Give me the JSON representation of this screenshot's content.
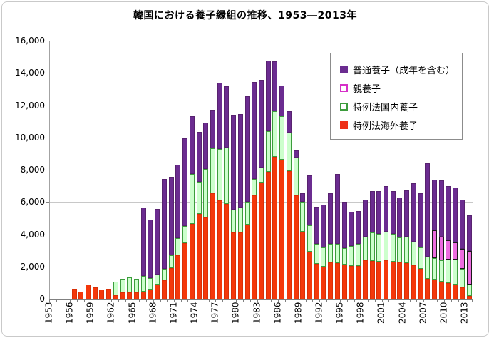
{
  "chart": {
    "title": "韓国における養子縁組の推移、1953―2013年",
    "colors": {
      "purple_fill": "#6b2c90",
      "purple_border": "#58226f",
      "pink_fill": "#ec6cdf",
      "pink_border": "#1a1a1a",
      "pink_swatch_border": "#d630c8",
      "green_fill": "#ccffcc",
      "green_border": "#3c9c3c",
      "red_fill": "#f4380b",
      "red_border": "#d93007",
      "grid": "#c8c8c8",
      "plot_frame": "#a3a3a3",
      "axis": "#808080"
    },
    "y_axis": {
      "min": 0,
      "max": 16000,
      "step": 2000,
      "tick_labels": [
        "0",
        "2,000",
        "4,000",
        "6,000",
        "8,000",
        "10,000",
        "12,000",
        "14,000",
        "16,000"
      ]
    },
    "x_axis": {
      "tick_labels": [
        "1953",
        "1956",
        "1959",
        "1962",
        "1965",
        "1968",
        "1971",
        "1974",
        "1977",
        "1980",
        "1983",
        "1986",
        "1989",
        "1992",
        "1995",
        "1998",
        "2001",
        "2004",
        "2007",
        "2010",
        "2013"
      ],
      "label_every": 3
    },
    "legend": [
      {
        "label": "普通養子（成年を含む）",
        "swatch": "solid",
        "color": "#6b2c90"
      },
      {
        "label": "親養子",
        "swatch": "outline",
        "color": "#d630c8"
      },
      {
        "label": "特例法国内養子",
        "swatch": "outline",
        "color": "#3c9c3c"
      },
      {
        "label": "特例法海外養子",
        "swatch": "solid",
        "color": "#ee3118"
      }
    ]
  },
  "chart_data": {
    "type": "bar",
    "stacked": true,
    "title": "韓国における養子縁組の推移、1953―2013年",
    "ylim": [
      0,
      16000
    ],
    "grid": true,
    "legend_position": "top-right",
    "categories": [
      1953,
      1954,
      1955,
      1956,
      1957,
      1958,
      1959,
      1960,
      1961,
      1962,
      1963,
      1964,
      1965,
      1966,
      1967,
      1968,
      1969,
      1970,
      1971,
      1972,
      1973,
      1974,
      1975,
      1976,
      1977,
      1978,
      1979,
      1980,
      1981,
      1982,
      1983,
      1984,
      1985,
      1986,
      1987,
      1988,
      1989,
      1990,
      1991,
      1992,
      1993,
      1994,
      1995,
      1996,
      1997,
      1998,
      1999,
      2000,
      2001,
      2002,
      2003,
      2004,
      2005,
      2006,
      2007,
      2008,
      2009,
      2010,
      2011,
      2012,
      2013
    ],
    "series": [
      {
        "name": "特例法海外養子",
        "color": "#f4380b",
        "values": [
          4,
          8,
          59,
          671,
          486,
          930,
          741,
          638,
          660,
          254,
          442,
          462,
          451,
          494,
          626,
          949,
          1190,
          1932,
          2725,
          3490,
          4688,
          5302,
          5077,
          6597,
          6159,
          5917,
          4148,
          4144,
          4628,
          6434,
          7263,
          7924,
          8837,
          8680,
          7947,
          6463,
          4191,
          2962,
          2197,
          2045,
          2290,
          2262,
          2180,
          2080,
          2057,
          2443,
          2409,
          2360,
          2436,
          2365,
          2287,
          2258,
          2101,
          1899,
          1264,
          1250,
          1125,
          1013,
          916,
          755,
          236
        ]
      },
      {
        "name": "特例法国内養子",
        "color": "#ccffcc",
        "values": [
          0,
          0,
          0,
          0,
          0,
          0,
          0,
          0,
          0,
          850,
          860,
          900,
          850,
          985,
          705,
          605,
          730,
          800,
          1090,
          1050,
          3100,
          2000,
          3034,
          2760,
          3160,
          3500,
          1400,
          1550,
          1430,
          1030,
          900,
          2500,
          2854,
          2680,
          2382,
          2324,
          1872,
          1647,
          1241,
          1190,
          1154,
          1207,
          1025,
          1229,
          1412,
          1426,
          1726,
          1686,
          1770,
          1694,
          1564,
          1641,
          1461,
          1332,
          1388,
          1306,
          1314,
          1462,
          1548,
          1125,
          686
        ]
      },
      {
        "name": "親養子",
        "color": "#ec6cdf",
        "values": [
          0,
          0,
          0,
          0,
          0,
          0,
          0,
          0,
          0,
          0,
          0,
          0,
          0,
          0,
          0,
          0,
          0,
          0,
          0,
          0,
          0,
          0,
          0,
          0,
          0,
          0,
          0,
          0,
          0,
          0,
          0,
          0,
          0,
          0,
          0,
          0,
          0,
          0,
          0,
          0,
          0,
          0,
          0,
          0,
          0,
          0,
          0,
          0,
          0,
          0,
          0,
          0,
          0,
          0,
          0,
          1740,
          1460,
          1200,
          1090,
          1280,
          2090
        ]
      },
      {
        "name": "普通養子（成年を含む）",
        "color": "#6b2c90",
        "values": [
          0,
          0,
          0,
          0,
          0,
          0,
          0,
          0,
          0,
          0,
          0,
          0,
          0,
          4220,
          3620,
          4070,
          5550,
          4880,
          4535,
          5460,
          3560,
          3100,
          2840,
          2395,
          4105,
          3815,
          5910,
          5805,
          6560,
          6040,
          5470,
          4390,
          3065,
          1890,
          1320,
          455,
          540,
          3090,
          2310,
          2665,
          3135,
          4290,
          2845,
          2120,
          2030,
          2325,
          2605,
          2695,
          2830,
          2680,
          2490,
          2860,
          3640,
          3350,
          5810,
          3125,
          3490,
          3345,
          3405,
          3030,
          2190
        ]
      }
    ]
  }
}
